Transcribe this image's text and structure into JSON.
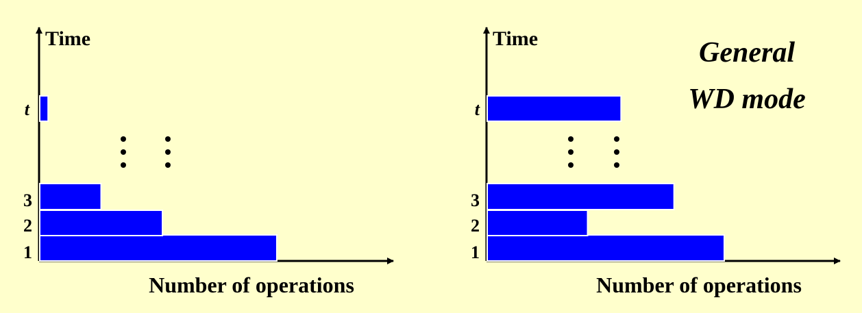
{
  "panels": [
    {
      "y_label": "Time",
      "x_label": "Number of operations",
      "row_labels": [
        "1",
        "2",
        "3",
        "t"
      ],
      "bar_values": [
        0.85,
        0.44,
        0.22,
        0.03
      ]
    },
    {
      "y_label": "Time",
      "x_label": "Number of operations",
      "row_labels": [
        "1",
        "2",
        "3",
        "t"
      ],
      "bar_values": [
        0.85,
        0.36,
        0.67,
        0.48
      ]
    }
  ],
  "annotation": {
    "line1": "General",
    "line2": "WD mode"
  },
  "colors": {
    "background": "#FFFFCC",
    "bar_fill": "#0000FF",
    "bar_outline": "#FFFFFF",
    "axis": "#000000"
  }
}
